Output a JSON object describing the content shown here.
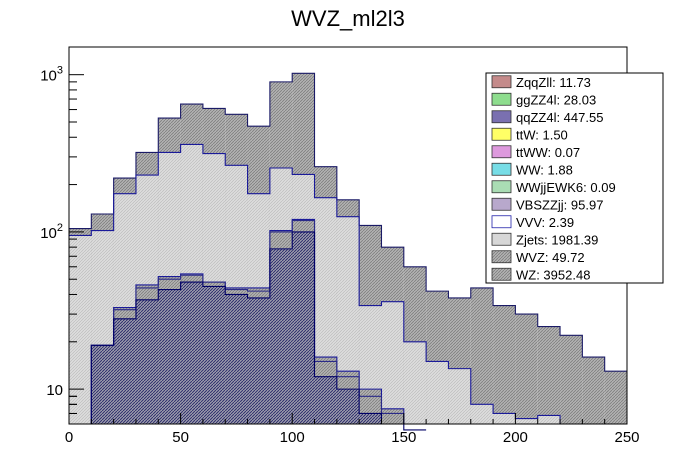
{
  "chart_data": {
    "type": "stacked-histogram",
    "title": "WVZ_ml2l3",
    "xlabel": "",
    "ylabel": "",
    "xlim": [
      0,
      250
    ],
    "ylim": [
      6,
      1500
    ],
    "y_scale": "log",
    "x_ticks": [
      0,
      50,
      100,
      150,
      200,
      250
    ],
    "y_tick_labels": [
      {
        "value": 1000,
        "label": "10",
        "exponent": "3"
      },
      {
        "value": 100,
        "label": "10",
        "exponent": "2"
      },
      {
        "value": 10,
        "label": "10",
        "exponent": ""
      }
    ],
    "bin_edges": [
      0,
      10,
      20,
      30,
      40,
      50,
      60,
      70,
      80,
      90,
      100,
      110,
      120,
      130,
      140,
      150,
      160,
      170,
      180,
      190,
      200,
      210,
      220,
      230,
      240,
      250
    ],
    "stack_levels": [
      {
        "name": "lower",
        "values": [
          6,
          19,
          28,
          37,
          43,
          48,
          45,
          40,
          38,
          78,
          100,
          12,
          10,
          7,
          6,
          5.5,
          null,
          null,
          null,
          null,
          null,
          null,
          null,
          null,
          null
        ]
      },
      {
        "name": "middle",
        "values": [
          6,
          19,
          32,
          44,
          50,
          53,
          48,
          43,
          42,
          100,
          118,
          15,
          12,
          9,
          7,
          6,
          null,
          null,
          null,
          null,
          null,
          null,
          null,
          null,
          null
        ]
      },
      {
        "name": "upper",
        "values": [
          6,
          19,
          33,
          46,
          52,
          54,
          48,
          44,
          44,
          102,
          120,
          16,
          13,
          10,
          7.5,
          6,
          null,
          null,
          null,
          null,
          null,
          null,
          null,
          null,
          null
        ]
      },
      {
        "name": "zjets",
        "values": [
          95,
          102,
          175,
          230,
          320,
          360,
          315,
          265,
          175,
          255,
          232,
          165,
          125,
          34,
          36,
          20,
          15,
          13.5,
          8,
          7,
          6.5,
          6.8,
          6,
          6,
          6
        ]
      },
      {
        "name": "total",
        "values": [
          105,
          130,
          220,
          320,
          530,
          650,
          610,
          560,
          470,
          900,
          1020,
          260,
          160,
          110,
          80,
          60,
          42,
          38,
          44,
          34,
          30,
          25,
          22,
          16,
          13
        ]
      }
    ],
    "legend_position": "top-right",
    "series": [
      {
        "name": "ZqqZll: 11.73",
        "color": "#c48a8a",
        "hatch": false
      },
      {
        "name": "ggZZ4l: 28.03",
        "color": "#8edd8e",
        "hatch": false
      },
      {
        "name": "qqZZ4l: 447.55",
        "color": "#7a70b0",
        "hatch": false
      },
      {
        "name": "ttW: 1.50",
        "color": "#ffff66",
        "hatch": false
      },
      {
        "name": "ttWW: 0.07",
        "color": "#dd99dd",
        "hatch": false
      },
      {
        "name": "WW: 1.88",
        "color": "#77dde6",
        "hatch": false
      },
      {
        "name": "WWjjEWK6: 0.09",
        "color": "#aadcb4",
        "hatch": false
      },
      {
        "name": "VBSZZjj: 95.97",
        "color": "#b8a8cc",
        "hatch": false
      },
      {
        "name": "VVV: 2.39",
        "color": "#ffffff",
        "hatch": false
      },
      {
        "name": "Zjets: 1981.39",
        "color": "#d7d7d7",
        "hatch": false
      },
      {
        "name": "WVZ: 49.72",
        "color": "#aaaaaa",
        "hatch": true
      },
      {
        "name": "WZ: 3952.48",
        "color": "#aaaaaa",
        "hatch": true
      }
    ]
  }
}
